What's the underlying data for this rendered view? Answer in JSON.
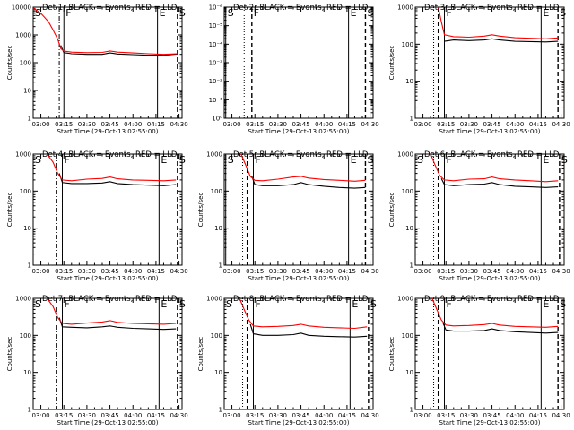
{
  "chart_data": [
    {
      "type": "line",
      "title": "Det 1r BLACK = Events, RED = LLD",
      "xlabel": "Start Time (29-Oct-13 02:55:00)",
      "ylabel": "Counts/sec",
      "x_tick_labels": [
        "03:00",
        "03:15",
        "03:30",
        "03:45",
        "04:00",
        "04:15",
        "04:30"
      ],
      "y_tick_labels": [
        "1",
        "10",
        "100",
        "1000",
        "10000"
      ],
      "y_scale": "log",
      "ylim": [
        1,
        10000
      ],
      "xlim": [
        "02:55",
        "04:32"
      ],
      "markers": [
        {
          "label": "S",
          "time": "02:55",
          "style": "solid"
        },
        {
          "label": "",
          "time": "03:12",
          "style": "dashdot"
        },
        {
          "label": "F",
          "time": "03:15",
          "style": "solid"
        },
        {
          "label": "E",
          "time": "04:16",
          "style": "solid"
        },
        {
          "label": "S",
          "time": "04:29",
          "style": "dashed"
        }
      ],
      "series": [
        {
          "color": "#000000",
          "x": [
            "03:13",
            "03:15",
            "03:20",
            "03:30",
            "03:40",
            "03:45",
            "03:50",
            "04:00",
            "04:10",
            "04:16",
            "04:20",
            "04:25",
            "04:29"
          ],
          "values": [
            420,
            230,
            210,
            200,
            200,
            225,
            205,
            195,
            185,
            190,
            185,
            195,
            205
          ]
        },
        {
          "color": "#ff0000",
          "x": [
            "02:55",
            "03:00",
            "03:05",
            "03:08",
            "03:11",
            "03:13",
            "03:15",
            "03:20",
            "03:30",
            "03:40",
            "03:45",
            "03:50",
            "04:00",
            "04:10",
            "04:20",
            "04:25",
            "04:29"
          ],
          "values": [
            9500,
            6000,
            3000,
            1500,
            700,
            320,
            260,
            240,
            230,
            235,
            265,
            240,
            225,
            210,
            200,
            205,
            210
          ]
        }
      ]
    },
    {
      "type": "line",
      "title": "Det 2r BLACK = Events, RED = LLD",
      "xlabel": "Start Time (29-Oct-13 02:55:00)",
      "ylabel": "",
      "x_tick_labels": [
        "03:00",
        "03:15",
        "03:30",
        "03:45",
        "04:00",
        "04:15",
        "04:30"
      ],
      "y_tick_labels": [
        "10⁰",
        "10⁻¹",
        "10⁻²",
        "10⁻³",
        "10⁻⁴",
        "10⁻⁵",
        "10⁻⁶"
      ],
      "y_scale": "log",
      "ylim": [
        1e-06,
        1
      ],
      "xlim": [
        "02:55",
        "04:32"
      ],
      "markers": [
        {
          "label": "S",
          "time": "02:56",
          "style": "solid"
        },
        {
          "label": "",
          "time": "03:08",
          "style": "dotted"
        },
        {
          "label": "F",
          "time": "03:13",
          "style": "dashed"
        },
        {
          "label": "E",
          "time": "04:16",
          "style": "solid"
        },
        {
          "label": "S",
          "time": "04:27",
          "style": "dashed"
        }
      ],
      "series": []
    },
    {
      "type": "line",
      "title": "Det 3r BLACK = Events, RED = LLD",
      "xlabel": "Start Time (29-Oct-13 02:55:00)",
      "ylabel": "Counts/sec",
      "x_tick_labels": [
        "03:00",
        "03:15",
        "03:30",
        "03:45",
        "04:00",
        "04:15",
        "04:30"
      ],
      "y_tick_labels": [
        "1",
        "10",
        "100",
        "1000"
      ],
      "y_scale": "log",
      "ylim": [
        1,
        1000
      ],
      "xlim": [
        "02:55",
        "04:32"
      ],
      "markers": [
        {
          "label": "",
          "time": "03:07",
          "style": "dotted"
        },
        {
          "label": "",
          "time": "03:10",
          "style": "dashed"
        },
        {
          "label": "F",
          "time": "03:14",
          "style": "solid"
        },
        {
          "label": "E",
          "time": "04:17",
          "style": "solid"
        },
        {
          "label": "S",
          "time": "04:28",
          "style": "dashed"
        }
      ],
      "series": [
        {
          "color": "#000000",
          "x": [
            "03:14",
            "03:20",
            "03:30",
            "03:40",
            "03:45",
            "03:50",
            "04:00",
            "04:10",
            "04:20",
            "04:28"
          ],
          "values": [
            120,
            130,
            125,
            130,
            140,
            130,
            120,
            118,
            115,
            120
          ]
        },
        {
          "color": "#ff0000",
          "x": [
            "03:10",
            "03:12",
            "03:14",
            "03:20",
            "03:30",
            "03:40",
            "03:45",
            "03:50",
            "04:00",
            "04:10",
            "04:20",
            "04:28"
          ],
          "values": [
            1000,
            400,
            180,
            160,
            155,
            165,
            180,
            165,
            150,
            145,
            140,
            148
          ]
        }
      ]
    },
    {
      "type": "line",
      "title": "Det 4r BLACK = Events, RED = LLD",
      "xlabel": "Start Time (29-Oct-13 02:55:00)",
      "ylabel": "Counts/sec",
      "x_tick_labels": [
        "03:00",
        "03:15",
        "03:30",
        "03:45",
        "04:00",
        "04:15",
        "04:30"
      ],
      "y_tick_labels": [
        "1",
        "10",
        "100",
        "1000"
      ],
      "y_scale": "log",
      "ylim": [
        1,
        1000
      ],
      "xlim": [
        "02:55",
        "04:32"
      ],
      "markers": [
        {
          "label": "S",
          "time": "02:55",
          "style": "solid"
        },
        {
          "label": "",
          "time": "03:10",
          "style": "dashdot"
        },
        {
          "label": "F",
          "time": "03:14",
          "style": "solid"
        },
        {
          "label": "E",
          "time": "04:17",
          "style": "solid"
        },
        {
          "label": "S",
          "time": "04:29",
          "style": "dashed"
        }
      ],
      "series": [
        {
          "color": "#000000",
          "x": [
            "03:12",
            "03:14",
            "03:20",
            "03:30",
            "03:40",
            "03:45",
            "03:50",
            "04:00",
            "04:10",
            "04:20",
            "04:28"
          ],
          "values": [
            300,
            170,
            160,
            160,
            165,
            180,
            160,
            150,
            145,
            140,
            150
          ]
        },
        {
          "color": "#ff0000",
          "x": [
            "03:04",
            "03:08",
            "03:11",
            "03:14",
            "03:20",
            "03:30",
            "03:40",
            "03:45",
            "03:50",
            "04:00",
            "04:10",
            "04:20",
            "04:28"
          ],
          "values": [
            1000,
            600,
            300,
            200,
            190,
            210,
            220,
            240,
            215,
            200,
            195,
            190,
            200
          ]
        }
      ]
    },
    {
      "type": "line",
      "title": "Det 5r BLACK = Events, RED = LLD",
      "xlabel": "Start Time (29-Oct-13 02:55:00)",
      "ylabel": "Counts/sec",
      "x_tick_labels": [
        "03:00",
        "03:15",
        "03:30",
        "03:45",
        "04:00",
        "04:15",
        "04:30"
      ],
      "y_tick_labels": [
        "1",
        "10",
        "100",
        "1000"
      ],
      "y_scale": "log",
      "ylim": [
        1,
        1000
      ],
      "xlim": [
        "02:55",
        "04:32"
      ],
      "markers": [
        {
          "label": "S",
          "time": "02:56",
          "style": "solid"
        },
        {
          "label": "",
          "time": "03:07",
          "style": "dotted"
        },
        {
          "label": "",
          "time": "03:10",
          "style": "dashed"
        },
        {
          "label": "F",
          "time": "03:14",
          "style": "solid"
        },
        {
          "label": "E",
          "time": "04:16",
          "style": "solid"
        },
        {
          "label": "S",
          "time": "04:27",
          "style": "dashed"
        }
      ],
      "series": [
        {
          "color": "#000000",
          "x": [
            "03:13",
            "03:15",
            "03:20",
            "03:30",
            "03:40",
            "03:45",
            "03:50",
            "04:00",
            "04:10",
            "04:20",
            "04:27"
          ],
          "values": [
            250,
            150,
            140,
            140,
            150,
            170,
            150,
            135,
            125,
            120,
            125
          ]
        },
        {
          "color": "#ff0000",
          "x": [
            "03:06",
            "03:09",
            "03:12",
            "03:15",
            "03:20",
            "03:30",
            "03:40",
            "03:45",
            "03:50",
            "04:00",
            "04:10",
            "04:20",
            "04:27"
          ],
          "values": [
            1000,
            500,
            250,
            195,
            190,
            210,
            240,
            250,
            225,
            205,
            195,
            185,
            195
          ]
        }
      ]
    },
    {
      "type": "line",
      "title": "Det 6r BLACK = Events, RED = LLD",
      "xlabel": "Start Time (29-Oct-13 02:55:00)",
      "ylabel": "Counts/sec",
      "x_tick_labels": [
        "03:00",
        "03:15",
        "03:30",
        "03:45",
        "04:00",
        "04:15",
        "04:30"
      ],
      "y_tick_labels": [
        "1",
        "10",
        "100",
        "1000"
      ],
      "y_scale": "log",
      "ylim": [
        1,
        1000
      ],
      "xlim": [
        "02:55",
        "04:32"
      ],
      "markers": [
        {
          "label": "S",
          "time": "02:55",
          "style": "solid"
        },
        {
          "label": "",
          "time": "03:07",
          "style": "dotted"
        },
        {
          "label": "",
          "time": "03:10",
          "style": "dashed"
        },
        {
          "label": "F",
          "time": "03:14",
          "style": "solid"
        },
        {
          "label": "E",
          "time": "04:17",
          "style": "solid"
        },
        {
          "label": "S",
          "time": "04:29",
          "style": "dashed"
        }
      ],
      "series": [
        {
          "color": "#000000",
          "x": [
            "03:12",
            "03:14",
            "03:20",
            "03:30",
            "03:40",
            "03:45",
            "03:50",
            "04:00",
            "04:10",
            "04:20",
            "04:28"
          ],
          "values": [
            220,
            150,
            140,
            150,
            155,
            170,
            150,
            135,
            130,
            125,
            130
          ]
        },
        {
          "color": "#ff0000",
          "x": [
            "03:05",
            "03:08",
            "03:11",
            "03:14",
            "03:20",
            "03:30",
            "03:40",
            "03:45",
            "03:50",
            "04:00",
            "04:10",
            "04:20",
            "04:28"
          ],
          "values": [
            1000,
            500,
            260,
            200,
            190,
            210,
            215,
            240,
            215,
            200,
            190,
            180,
            190
          ]
        }
      ]
    },
    {
      "type": "line",
      "title": "Det 7r BLACK = Events, RED = LLD",
      "xlabel": "Start Time (29-Oct-13 02:55:00)",
      "ylabel": "Counts/sec",
      "x_tick_labels": [
        "03:00",
        "03:15",
        "03:30",
        "03:45",
        "04:00",
        "04:15",
        "04:30"
      ],
      "y_tick_labels": [
        "1",
        "10",
        "100",
        "1000"
      ],
      "y_scale": "log",
      "ylim": [
        1,
        1000
      ],
      "xlim": [
        "02:55",
        "04:32"
      ],
      "markers": [
        {
          "label": "S",
          "time": "02:55",
          "style": "solid"
        },
        {
          "label": "",
          "time": "03:10",
          "style": "dashdot"
        },
        {
          "label": "F",
          "time": "03:14",
          "style": "solid"
        },
        {
          "label": "E",
          "time": "04:17",
          "style": "solid"
        },
        {
          "label": "S",
          "time": "04:29",
          "style": "dashed"
        }
      ],
      "series": [
        {
          "color": "#000000",
          "x": [
            "03:12",
            "03:14",
            "03:20",
            "03:30",
            "03:40",
            "03:45",
            "03:50",
            "04:00",
            "04:10",
            "04:20",
            "04:28"
          ],
          "values": [
            300,
            170,
            165,
            160,
            170,
            180,
            165,
            155,
            150,
            145,
            150
          ]
        },
        {
          "color": "#ff0000",
          "x": [
            "03:04",
            "03:08",
            "03:11",
            "03:14",
            "03:20",
            "03:30",
            "03:40",
            "03:45",
            "03:50",
            "04:00",
            "04:10",
            "04:20",
            "04:28"
          ],
          "values": [
            1000,
            600,
            300,
            210,
            200,
            215,
            230,
            250,
            225,
            210,
            205,
            200,
            210
          ]
        }
      ]
    },
    {
      "type": "line",
      "title": "Det 8r BLACK = Events, RED = LLD",
      "xlabel": "Start Time (29-Oct-13 02:55:00)",
      "ylabel": "Counts/sec",
      "x_tick_labels": [
        "03:00",
        "03:15",
        "03:30",
        "03:45",
        "04:00",
        "04:15",
        "04:30"
      ],
      "y_tick_labels": [
        "1",
        "10",
        "100",
        "1000"
      ],
      "y_scale": "log",
      "ylim": [
        1,
        1000
      ],
      "xlim": [
        "02:55",
        "04:32"
      ],
      "markers": [
        {
          "label": "S",
          "time": "02:55",
          "style": "solid"
        },
        {
          "label": "",
          "time": "03:07",
          "style": "dotted"
        },
        {
          "label": "",
          "time": "03:10",
          "style": "dashed"
        },
        {
          "label": "F",
          "time": "03:14",
          "style": "solid"
        },
        {
          "label": "E",
          "time": "04:17",
          "style": "solid"
        },
        {
          "label": "S",
          "time": "04:29",
          "style": "dashed"
        }
      ],
      "series": [
        {
          "color": "#000000",
          "x": [
            "03:12",
            "03:14",
            "03:20",
            "03:30",
            "03:40",
            "03:45",
            "03:50",
            "04:00",
            "04:10",
            "04:20",
            "04:28"
          ],
          "values": [
            200,
            110,
            100,
            100,
            105,
            115,
            100,
            95,
            92,
            90,
            95
          ]
        },
        {
          "color": "#ff0000",
          "x": [
            "03:05",
            "03:08",
            "03:11",
            "03:14",
            "03:20",
            "03:30",
            "03:40",
            "03:45",
            "03:50",
            "04:00",
            "04:10",
            "04:20",
            "04:28"
          ],
          "values": [
            1000,
            500,
            260,
            180,
            170,
            175,
            185,
            200,
            180,
            165,
            160,
            155,
            170
          ]
        }
      ]
    },
    {
      "type": "line",
      "title": "Det 9r BLACK = Events, RED = LLD",
      "xlabel": "Start Time (29-Oct-13 02:55:00)",
      "ylabel": "Counts/sec",
      "x_tick_labels": [
        "03:00",
        "03:15",
        "03:30",
        "03:45",
        "04:00",
        "04:15",
        "04:30"
      ],
      "y_tick_labels": [
        "1",
        "10",
        "100",
        "1000"
      ],
      "y_scale": "log",
      "ylim": [
        1,
        1000
      ],
      "xlim": [
        "02:55",
        "04:32"
      ],
      "markers": [
        {
          "label": "",
          "time": "03:07",
          "style": "dotted"
        },
        {
          "label": "",
          "time": "03:10",
          "style": "dashed"
        },
        {
          "label": "F",
          "time": "03:14",
          "style": "solid"
        },
        {
          "label": "E",
          "time": "04:17",
          "style": "solid"
        },
        {
          "label": "S",
          "time": "04:28",
          "style": "dashed"
        }
      ],
      "series": [
        {
          "color": "#000000",
          "x": [
            "03:13",
            "03:15",
            "03:20",
            "03:30",
            "03:40",
            "03:45",
            "03:50",
            "04:00",
            "04:10",
            "04:20",
            "04:28"
          ],
          "values": [
            220,
            140,
            130,
            130,
            135,
            150,
            135,
            125,
            120,
            115,
            120
          ]
        },
        {
          "color": "#ff0000",
          "x": [
            "03:06",
            "03:09",
            "03:12",
            "03:15",
            "03:20",
            "03:30",
            "03:40",
            "03:45",
            "03:50",
            "04:00",
            "04:10",
            "04:20",
            "04:28"
          ],
          "values": [
            1000,
            500,
            260,
            190,
            180,
            185,
            195,
            210,
            190,
            175,
            170,
            165,
            175
          ]
        }
      ]
    }
  ]
}
